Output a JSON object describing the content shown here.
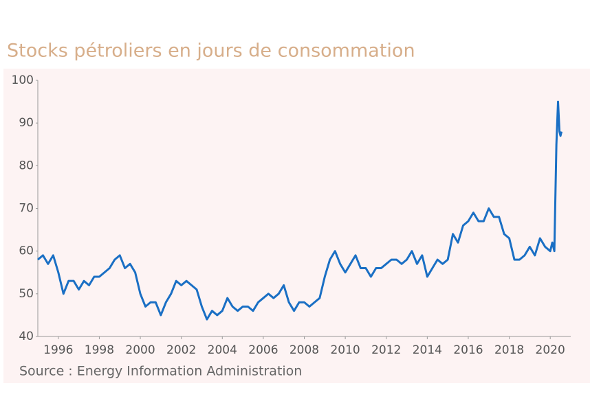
{
  "chart_data": {
    "type": "line",
    "title": "Stocks pétroliers en jours de consommation",
    "source": "Source : Energy Information Administration",
    "x": [
      1995.0,
      1995.25,
      1995.5,
      1995.75,
      1996.0,
      1996.25,
      1996.5,
      1996.75,
      1997.0,
      1997.25,
      1997.5,
      1997.75,
      1998.0,
      1998.25,
      1998.5,
      1998.75,
      1999.0,
      1999.25,
      1999.5,
      1999.75,
      2000.0,
      2000.25,
      2000.5,
      2000.75,
      2001.0,
      2001.25,
      2001.5,
      2001.75,
      2002.0,
      2002.25,
      2002.5,
      2002.75,
      2003.0,
      2003.25,
      2003.5,
      2003.75,
      2004.0,
      2004.25,
      2004.5,
      2004.75,
      2005.0,
      2005.25,
      2005.5,
      2005.75,
      2006.0,
      2006.25,
      2006.5,
      2006.75,
      2007.0,
      2007.25,
      2007.5,
      2007.75,
      2008.0,
      2008.25,
      2008.5,
      2008.75,
      2009.0,
      2009.25,
      2009.5,
      2009.75,
      2010.0,
      2010.25,
      2010.5,
      2010.75,
      2011.0,
      2011.25,
      2011.5,
      2011.75,
      2012.0,
      2012.25,
      2012.5,
      2012.75,
      2013.0,
      2013.25,
      2013.5,
      2013.75,
      2014.0,
      2014.25,
      2014.5,
      2014.75,
      2015.0,
      2015.25,
      2015.5,
      2015.75,
      2016.0,
      2016.25,
      2016.5,
      2016.75,
      2017.0,
      2017.25,
      2017.5,
      2017.75,
      2018.0,
      2018.25,
      2018.5,
      2018.75,
      2019.0,
      2019.25,
      2019.5,
      2019.75,
      2020.0,
      2020.1,
      2020.2,
      2020.3,
      2020.38,
      2020.45,
      2020.5,
      2020.55
    ],
    "series": [
      {
        "name": "Stocks",
        "color": "#1a6fc4",
        "values": [
          58,
          59,
          57,
          59,
          55,
          50,
          53,
          53,
          51,
          53,
          52,
          54,
          54,
          55,
          56,
          58,
          59,
          56,
          57,
          55,
          50,
          47,
          48,
          48,
          45,
          48,
          50,
          53,
          52,
          53,
          52,
          51,
          47,
          44,
          46,
          45,
          46,
          49,
          47,
          46,
          47,
          47,
          46,
          48,
          49,
          50,
          49,
          50,
          52,
          48,
          46,
          48,
          48,
          47,
          48,
          49,
          54,
          58,
          60,
          57,
          55,
          57,
          59,
          56,
          56,
          54,
          56,
          56,
          57,
          58,
          58,
          57,
          58,
          60,
          57,
          59,
          54,
          56,
          58,
          57,
          58,
          64,
          62,
          66,
          67,
          69,
          67,
          67,
          70,
          68,
          68,
          64,
          63,
          58,
          58,
          59,
          61,
          59,
          63,
          61,
          60,
          62,
          60,
          85,
          95,
          88,
          87,
          88
        ]
      }
    ],
    "xlim": [
      1995,
      2021
    ],
    "xticks": [
      1996,
      1998,
      2000,
      2002,
      2004,
      2006,
      2008,
      2010,
      2012,
      2014,
      2016,
      2018,
      2020
    ],
    "ylim": [
      40,
      100
    ],
    "yticks": [
      40,
      50,
      60,
      70,
      80,
      90,
      100
    ],
    "grid": false
  }
}
